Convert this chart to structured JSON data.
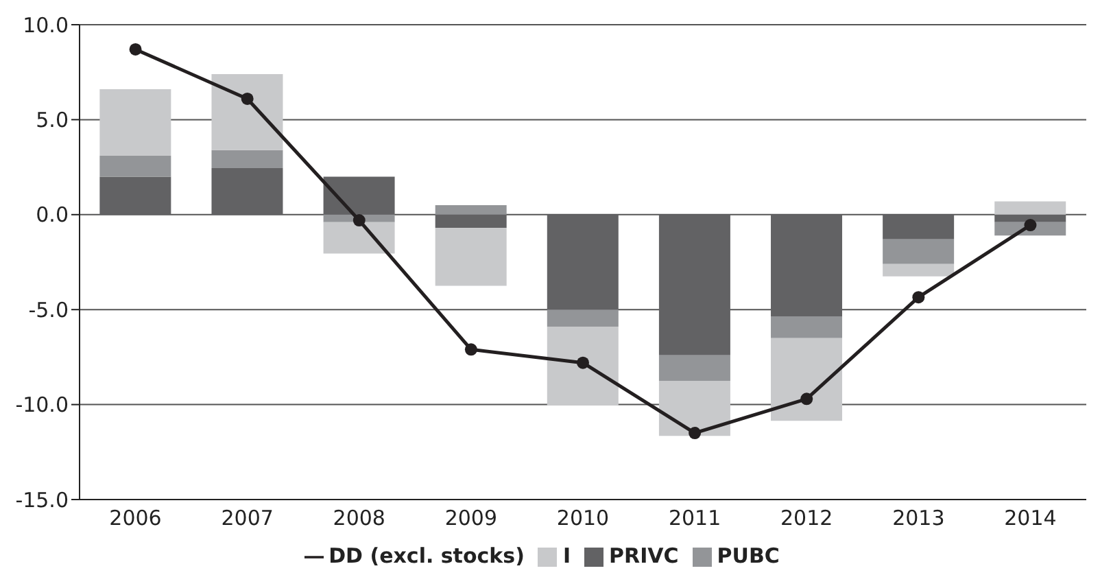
{
  "chart_data": {
    "type": "bar",
    "stacked": true,
    "categories": [
      "2006",
      "2007",
      "2008",
      "2009",
      "2010",
      "2011",
      "2012",
      "2013",
      "2014"
    ],
    "series": [
      {
        "name": "PRIVC",
        "color": "#626264",
        "values": [
          2.0,
          2.45,
          2.0,
          -0.7,
          -5.0,
          -7.4,
          -5.35,
          -1.3,
          -0.4
        ]
      },
      {
        "name": "PUBC",
        "color": "#939598",
        "values": [
          1.1,
          0.95,
          -0.4,
          0.5,
          -0.9,
          -1.35,
          -1.15,
          -1.3,
          -0.7
        ]
      },
      {
        "name": "I",
        "color": "#c8c9cb",
        "values": [
          3.5,
          4.0,
          -1.65,
          -3.05,
          -4.15,
          -2.9,
          -4.35,
          -0.65,
          0.7
        ]
      },
      {
        "name": "DD (excl. stocks)",
        "type": "line",
        "color": "#231f20",
        "values": [
          8.7,
          6.1,
          -0.3,
          -7.1,
          -7.8,
          -11.5,
          -9.7,
          -4.35,
          -0.55
        ]
      }
    ],
    "ylim": [
      -15,
      10
    ],
    "yticks": [
      {
        "value": -15,
        "label": "-15.0"
      },
      {
        "value": -10,
        "label": "-10.0"
      },
      {
        "value": -5,
        "label": "-5.0"
      },
      {
        "value": 0,
        "label": "0.0"
      },
      {
        "value": 5,
        "label": "5.0"
      },
      {
        "value": 10,
        "label": "10.0"
      }
    ],
    "grid": "y",
    "legend": "bottom",
    "marker": "circle",
    "line_style": "solid"
  }
}
